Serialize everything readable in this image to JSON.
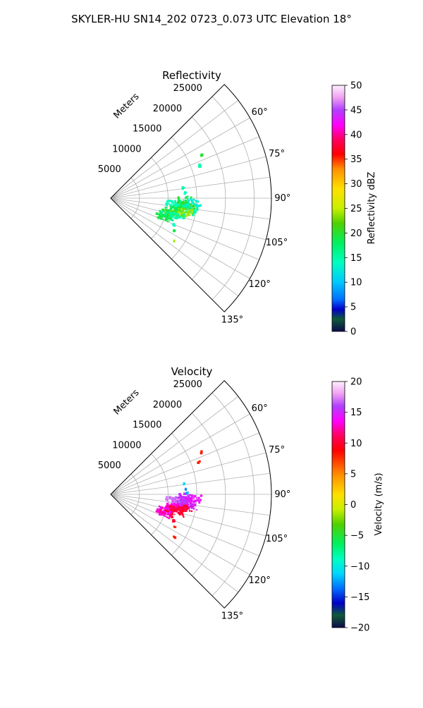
{
  "figure": {
    "suptitle": "SKYLER-HU  SN14_202  0723_0.073 UTC Elevation 18°"
  },
  "chart_data": [
    {
      "type": "polar-sector",
      "title": "Reflectivity",
      "range_label": "Meters",
      "range_max": 28000,
      "range_ticks": [
        5000,
        10000,
        15000,
        20000,
        25000
      ],
      "range_tick_labels": [
        "5000",
        "10000",
        "15000",
        "20000",
        "25000"
      ],
      "azimuth_range": [
        45,
        135
      ],
      "azimuth_ticks": [
        60,
        75,
        90,
        105,
        120,
        135
      ],
      "azimuth_tick_labels": [
        "60°",
        "75°",
        "90°",
        "105°",
        "120°",
        "135°"
      ],
      "grid": true,
      "colorbar": {
        "label": "Reflectivity dBZ",
        "min": 0,
        "max": 50,
        "ticks": [
          0,
          5,
          10,
          15,
          20,
          25,
          30,
          35,
          40,
          45,
          50
        ],
        "tick_labels": [
          "0",
          "5",
          "10",
          "15",
          "20",
          "25",
          "30",
          "35",
          "40",
          "45",
          "50"
        ]
      },
      "echoes": [
        {
          "az": 97,
          "r": 12000,
          "value": 17
        },
        {
          "az": 98,
          "r": 12800,
          "value": 21
        },
        {
          "az": 100,
          "r": 11500,
          "value": 19
        },
        {
          "az": 96,
          "r": 13500,
          "value": 22
        },
        {
          "az": 94,
          "r": 12500,
          "value": 16
        },
        {
          "az": 102,
          "r": 10800,
          "value": 18
        },
        {
          "az": 104,
          "r": 10500,
          "value": 20
        },
        {
          "az": 103,
          "r": 11800,
          "value": 23
        },
        {
          "az": 106,
          "r": 10000,
          "value": 17
        },
        {
          "az": 99,
          "r": 14000,
          "value": 15
        },
        {
          "az": 95,
          "r": 11000,
          "value": 14
        },
        {
          "az": 92,
          "r": 13000,
          "value": 20
        },
        {
          "az": 93,
          "r": 14500,
          "value": 13
        },
        {
          "az": 101,
          "r": 13200,
          "value": 24
        },
        {
          "az": 105,
          "r": 12000,
          "value": 15
        },
        {
          "az": 108,
          "r": 10200,
          "value": 16
        },
        {
          "az": 110,
          "r": 9800,
          "value": 19
        },
        {
          "az": 89,
          "r": 13300,
          "value": 18
        },
        {
          "az": 86,
          "r": 13100,
          "value": 14
        },
        {
          "az": 82,
          "r": 12800,
          "value": 15
        },
        {
          "az": 65,
          "r": 17500,
          "value": 20
        },
        {
          "az": 70,
          "r": 16400,
          "value": 15
        },
        {
          "az": 113,
          "r": 12000,
          "value": 14
        },
        {
          "az": 117,
          "r": 12500,
          "value": 19
        },
        {
          "az": 124,
          "r": 13400,
          "value": 24
        }
      ]
    },
    {
      "type": "polar-sector",
      "title": "Velocity",
      "range_label": "Meters",
      "range_max": 28000,
      "range_ticks": [
        5000,
        10000,
        15000,
        20000,
        25000
      ],
      "range_tick_labels": [
        "5000",
        "10000",
        "15000",
        "20000",
        "25000"
      ],
      "azimuth_range": [
        45,
        135
      ],
      "azimuth_ticks": [
        60,
        75,
        90,
        105,
        120,
        135
      ],
      "azimuth_tick_labels": [
        "60°",
        "75°",
        "90°",
        "105°",
        "120°",
        "135°"
      ],
      "grid": true,
      "colorbar": {
        "label": "Velocity (m/s)",
        "min": -20,
        "max": 20,
        "ticks": [
          -20,
          -15,
          -10,
          -5,
          0,
          5,
          10,
          15,
          20
        ],
        "tick_labels": [
          "−20",
          "−15",
          "−10",
          "−5",
          "0",
          "5",
          "10",
          "15",
          "20"
        ]
      },
      "echoes": [
        {
          "az": 97,
          "r": 12000,
          "value": 14
        },
        {
          "az": 98,
          "r": 12800,
          "value": 15
        },
        {
          "az": 100,
          "r": 11500,
          "value": 13
        },
        {
          "az": 96,
          "r": 13500,
          "value": 15
        },
        {
          "az": 94,
          "r": 12500,
          "value": 16
        },
        {
          "az": 102,
          "r": 10800,
          "value": 13
        },
        {
          "az": 104,
          "r": 10500,
          "value": 12
        },
        {
          "az": 103,
          "r": 11800,
          "value": 10
        },
        {
          "az": 106,
          "r": 10000,
          "value": 14
        },
        {
          "az": 99,
          "r": 14000,
          "value": 15
        },
        {
          "az": 95,
          "r": 11000,
          "value": 17
        },
        {
          "az": 92,
          "r": 13000,
          "value": 15
        },
        {
          "az": 93,
          "r": 14500,
          "value": 14
        },
        {
          "az": 101,
          "r": 13200,
          "value": 10
        },
        {
          "az": 105,
          "r": 12000,
          "value": 10
        },
        {
          "az": 108,
          "r": 10200,
          "value": 10
        },
        {
          "az": 110,
          "r": 9800,
          "value": 13
        },
        {
          "az": 89,
          "r": 13300,
          "value": -12
        },
        {
          "az": 86,
          "r": 13100,
          "value": -13
        },
        {
          "az": 82,
          "r": 12800,
          "value": -11
        },
        {
          "az": 65,
          "r": 17500,
          "value": 8
        },
        {
          "az": 70,
          "r": 16400,
          "value": 8
        },
        {
          "az": 113,
          "r": 12000,
          "value": 10
        },
        {
          "az": 117,
          "r": 12500,
          "value": 8
        },
        {
          "az": 124,
          "r": 13400,
          "value": 8
        }
      ]
    }
  ]
}
